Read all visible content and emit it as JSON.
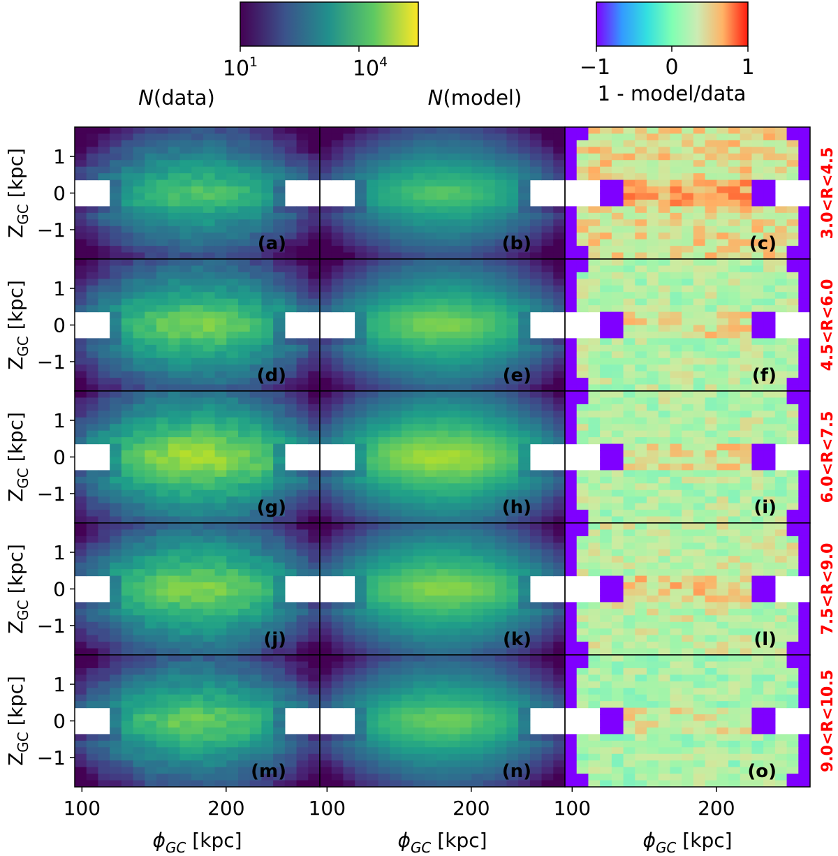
{
  "chart_data": {
    "type": "heatmap",
    "grid": {
      "rows": 5,
      "cols": 3,
      "nx": 21,
      "nz": 20
    },
    "x_range": [
      95,
      265
    ],
    "y_range": [
      -1.8,
      1.8
    ],
    "x_ticks": [
      100,
      200
    ],
    "y_ticks": [
      -1,
      0,
      1
    ],
    "xlabel_base": "ϕ",
    "xlabel_sub": "GC",
    "xlabel_unit": " [kpc]",
    "ylabel_base": "Z",
    "ylabel_sub": "GC",
    "ylabel_unit": " [kpc]",
    "column_titles": [
      {
        "italic": "N",
        "text": "(data)"
      },
      {
        "italic": "N",
        "text": "(model)"
      },
      {
        "italic": "",
        "text": "1 - model/data"
      }
    ],
    "colorbars": [
      {
        "name": "counts",
        "scale": "log",
        "range": [
          10,
          100000
        ],
        "ticks": [
          {
            "value": 10,
            "base": "10",
            "exp": "1"
          },
          {
            "value": 10000,
            "base": "10",
            "exp": "4"
          }
        ],
        "stops": [
          "#440154",
          "#3b528b",
          "#21918c",
          "#5ec962",
          "#fde725"
        ]
      },
      {
        "name": "ratio",
        "scale": "linear",
        "range": [
          -1,
          1
        ],
        "ticks": [
          {
            "value": -1,
            "label": "−1"
          },
          {
            "value": 0,
            "label": "0"
          },
          {
            "value": 1,
            "label": "1"
          }
        ],
        "stops": [
          "#7f00ff",
          "#3399ff",
          "#33e0e0",
          "#80ffb3",
          "#ccebb3",
          "#ffb366",
          "#ff1a0d"
        ]
      }
    ],
    "radial_bins": [
      "3.0<R<4.5",
      "4.5<R<6.0",
      "6.0<R<7.5",
      "7.5<R<9.0",
      "9.0<R<10.5"
    ],
    "panel_labels": [
      "(a)",
      "(b)",
      "(c)",
      "(d)",
      "(e)",
      "(f)",
      "(g)",
      "(h)",
      "(i)",
      "(j)",
      "(k)",
      "(l)",
      "(m)",
      "(n)",
      "(o)"
    ],
    "row_peak_log_counts": [
      4.0,
      4.3,
      4.6,
      4.4,
      4.2
    ],
    "row_ratio_means": [
      0.3,
      0.1,
      0.1,
      0.15,
      0.05
    ],
    "colors": {
      "empty": "#ffffff",
      "bin_label": "#ff0000",
      "frame": "#000000"
    }
  }
}
